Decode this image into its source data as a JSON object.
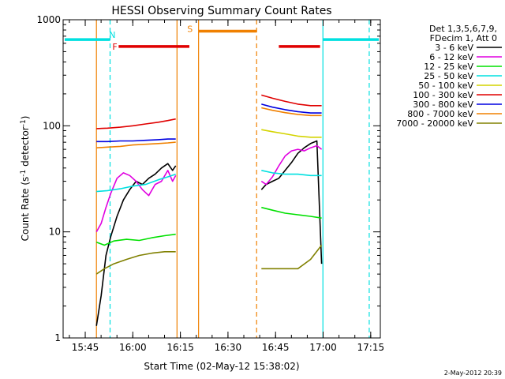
{
  "chart_data": {
    "type": "line",
    "title": "HESSI Observing Summary Count Rates",
    "xlabel": "Start Time (02-May-12 15:38:02)",
    "ylabel_main": "Count Rate (s",
    "ylabel_sup1": "-1",
    "ylabel_mid": " detector",
    "ylabel_sup2": "-1",
    "ylabel_end": ")",
    "yscale": "log",
    "ylim": [
      1,
      1000
    ],
    "xlim_minutes": [
      0,
      100
    ],
    "x_ticks": [
      {
        "label": "15:45",
        "minutes": 6.97
      },
      {
        "label": "16:00",
        "minutes": 21.97
      },
      {
        "label": "16:15",
        "minutes": 36.97
      },
      {
        "label": "16:30",
        "minutes": 51.97
      },
      {
        "label": "16:45",
        "minutes": 66.97
      },
      {
        "label": "17:00",
        "minutes": 81.97
      },
      {
        "label": "17:15",
        "minutes": 96.97
      }
    ],
    "y_ticks": [
      {
        "label": "1",
        "value": 1
      },
      {
        "label": "10",
        "value": 10
      },
      {
        "label": "100",
        "value": 100
      },
      {
        "label": "1000",
        "value": 1000
      }
    ],
    "legend": {
      "header_line1": "Det 1,3,5,6,7,9,",
      "header_line2": "FDecim 1, Att 0"
    },
    "series": [
      {
        "name": "3 - 6 keV",
        "color": "#000000",
        "segments": [
          {
            "x": [
              10.5,
              12,
              13.5,
              15,
              17,
              19,
              21,
              23,
              25,
              27,
              29,
              31,
              33,
              34.5,
              35.5
            ],
            "y": [
              1.3,
              2.5,
              6,
              9,
              14,
              20,
              25,
              30,
              28,
              32,
              35,
              40,
              44,
              38,
              42
            ]
          },
          {
            "x": [
              62.5,
              64,
              66,
              68,
              70,
              72,
              74,
              76,
              78,
              80,
              81.5
            ],
            "y": [
              25,
              28,
              30,
              32,
              38,
              45,
              55,
              62,
              68,
              72,
              5
            ]
          }
        ]
      },
      {
        "name": "6 - 12 keV",
        "color": "#e000e0",
        "segments": [
          {
            "x": [
              10.5,
              12,
              13.5,
              15,
              17,
              19,
              21,
              23,
              25,
              27,
              29,
              31,
              33,
              34.5,
              35.5
            ],
            "y": [
              10,
              12,
              17,
              23,
              32,
              36,
              34,
              30,
              25,
              22,
              28,
              30,
              38,
              30,
              34
            ]
          },
          {
            "x": [
              62.5,
              64,
              66,
              68,
              70,
              72,
              74,
              76,
              78,
              80,
              81.5
            ],
            "y": [
              30,
              28,
              33,
              42,
              52,
              58,
              60,
              58,
              62,
              65,
              60
            ]
          }
        ]
      },
      {
        "name": "12 - 25 keV",
        "color": "#00e000",
        "segments": [
          {
            "x": [
              10.5,
              13,
              16,
              20,
              24,
              28,
              32,
              35.5
            ],
            "y": [
              8,
              7.5,
              8.2,
              8.5,
              8.3,
              8.8,
              9.2,
              9.5
            ]
          },
          {
            "x": [
              62.5,
              66,
              70,
              74,
              78,
              81.5
            ],
            "y": [
              17,
              16,
              15,
              14.5,
              14,
              13.5
            ]
          }
        ]
      },
      {
        "name": "25 - 50 keV",
        "color": "#00e0e0",
        "segments": [
          {
            "x": [
              10.5,
              14,
              18,
              22,
              26,
              30,
              33,
              35.5
            ],
            "y": [
              24,
              24.5,
              25.5,
              27,
              28,
              31,
              33,
              35
            ]
          },
          {
            "x": [
              62.5,
              66,
              70,
              74,
              78,
              81.5
            ],
            "y": [
              38,
              36,
              35,
              35,
              34,
              34
            ]
          }
        ]
      },
      {
        "name": "50 - 100 keV",
        "color": "#d4d400",
        "segments": [
          {
            "x": [
              62.5,
              66,
              70,
              74,
              78,
              81.5
            ],
            "y": [
              92,
              88,
              84,
              80,
              78,
              78
            ]
          }
        ]
      },
      {
        "name": "100 - 300 keV",
        "color": "#e00000",
        "segments": [
          {
            "x": [
              10.5,
              14,
              18,
              22,
              26,
              30,
              33,
              35.5
            ],
            "y": [
              94,
              95,
              97,
              100,
              104,
              108,
              112,
              116
            ]
          },
          {
            "x": [
              62.5,
              66,
              70,
              74,
              78,
              81.5
            ],
            "y": [
              195,
              182,
              170,
              160,
              155,
              155
            ]
          }
        ]
      },
      {
        "name": "300 - 800 keV",
        "color": "#0000e0",
        "segments": [
          {
            "x": [
              10.5,
              14,
              18,
              22,
              26,
              30,
              33,
              35.5
            ],
            "y": [
              71,
              71,
              72,
              72,
              73,
              74,
              75,
              75
            ]
          },
          {
            "x": [
              62.5,
              66,
              70,
              74,
              78,
              81.5
            ],
            "y": [
              160,
              150,
              142,
              136,
              132,
              132
            ]
          }
        ]
      },
      {
        "name": "800 - 7000 keV",
        "color": "#f08000",
        "segments": [
          {
            "x": [
              10.5,
              14,
              18,
              22,
              26,
              30,
              33,
              35.5
            ],
            "y": [
              62,
              63,
              64,
              66,
              67,
              68,
              69,
              70
            ]
          },
          {
            "x": [
              62.5,
              66,
              70,
              74,
              78,
              81.5
            ],
            "y": [
              148,
              140,
              133,
              128,
              125,
              125
            ]
          }
        ]
      },
      {
        "name": "7000 - 20000 keV",
        "color": "#808000",
        "segments": [
          {
            "x": [
              10.5,
              13,
              16,
              20,
              24,
              28,
              32,
              35.5
            ],
            "y": [
              4,
              4.5,
              5,
              5.5,
              6,
              6.3,
              6.5,
              6.5
            ]
          },
          {
            "x": [
              62.5,
              66,
              70,
              74,
              78,
              81.5
            ],
            "y": [
              4.5,
              4.5,
              4.5,
              4.5,
              5.5,
              7.5
            ]
          }
        ]
      }
    ],
    "vertical_lines": [
      {
        "minutes": 10.5,
        "color": "#f08000",
        "style": "solid"
      },
      {
        "minutes": 14.8,
        "color": "#00e0e0",
        "style": "dashed"
      },
      {
        "minutes": 35.9,
        "color": "#f08000",
        "style": "solid"
      },
      {
        "minutes": 42.7,
        "color": "#f08000",
        "style": "solid"
      },
      {
        "minutes": 61.0,
        "color": "#f08000",
        "style": "dashed"
      },
      {
        "minutes": 81.9,
        "color": "#00e0e0",
        "style": "solid"
      },
      {
        "minutes": 96.5,
        "color": "#00e0e0",
        "style": "dashed"
      }
    ],
    "flag_bars": [
      {
        "label": "N",
        "color": "#00e0e0",
        "level": 650,
        "x_start": 0.5,
        "x_end": 14.8,
        "label_x": 15.5,
        "label_level": 720
      },
      {
        "label": "N",
        "color": "#00e0e0",
        "level": 650,
        "x_start": 81.9,
        "x_end": 99.5,
        "label_x": null,
        "label_level": null
      },
      {
        "label": "F",
        "color": "#e00000",
        "level": 560,
        "x_start": 17.5,
        "x_end": 39.8,
        "label_x": 16.3,
        "label_level": 560
      },
      {
        "label": "F",
        "color": "#e00000",
        "level": 560,
        "x_start": 68.0,
        "x_end": 81.0,
        "label_x": null,
        "label_level": null
      },
      {
        "label": "S",
        "color": "#f08000",
        "level": 780,
        "x_start": 42.7,
        "x_end": 61.0,
        "label_x": 40.0,
        "label_level": 820
      }
    ]
  },
  "footer": {
    "date": "2-May-2012 20:39"
  }
}
